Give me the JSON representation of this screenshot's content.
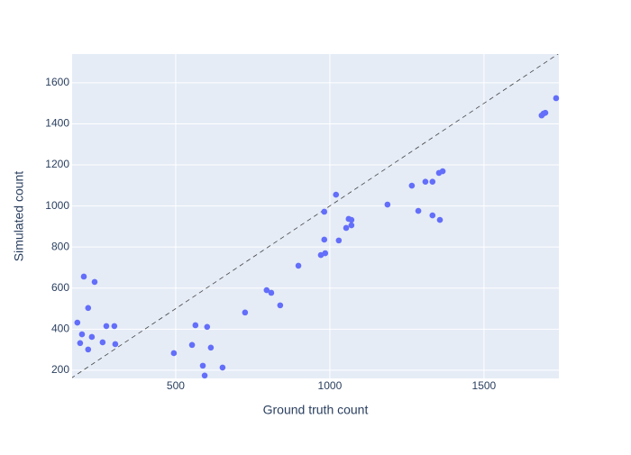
{
  "chart_data": {
    "type": "scatter",
    "x_label": "Ground truth count",
    "y_label": "Simulated count",
    "x": [
      181,
      190,
      196,
      202,
      216,
      216,
      228,
      237,
      263,
      275,
      301,
      304,
      494,
      553,
      564,
      588,
      594,
      602,
      614,
      652,
      725,
      795,
      810,
      839,
      898,
      971,
      982,
      982,
      985,
      1020,
      1029,
      1053,
      1061,
      1070,
      1070,
      1187,
      1266,
      1287,
      1310,
      1333,
      1333,
      1354,
      1357,
      1366,
      1687,
      1693,
      1699,
      1734
    ],
    "values": [
      432,
      332,
      375,
      656,
      503,
      301,
      362,
      630,
      336,
      415,
      415,
      327,
      283,
      323,
      419,
      222,
      174,
      411,
      310,
      213,
      481,
      590,
      577,
      516,
      709,
      761,
      972,
      836,
      770,
      1055,
      832,
      893,
      937,
      932,
      906,
      1007,
      1099,
      976,
      1118,
      1118,
      954,
      1161,
      932,
      1169,
      1441,
      1450,
      1454,
      1525
    ],
    "color": "#636efa",
    "xlim": [
      164,
      1743
    ],
    "ylim": [
      160,
      1740
    ],
    "xticks": [
      500,
      1000,
      1500
    ],
    "yticks": [
      200,
      400,
      600,
      800,
      1000,
      1200,
      1400,
      1600
    ],
    "grid": true
  }
}
